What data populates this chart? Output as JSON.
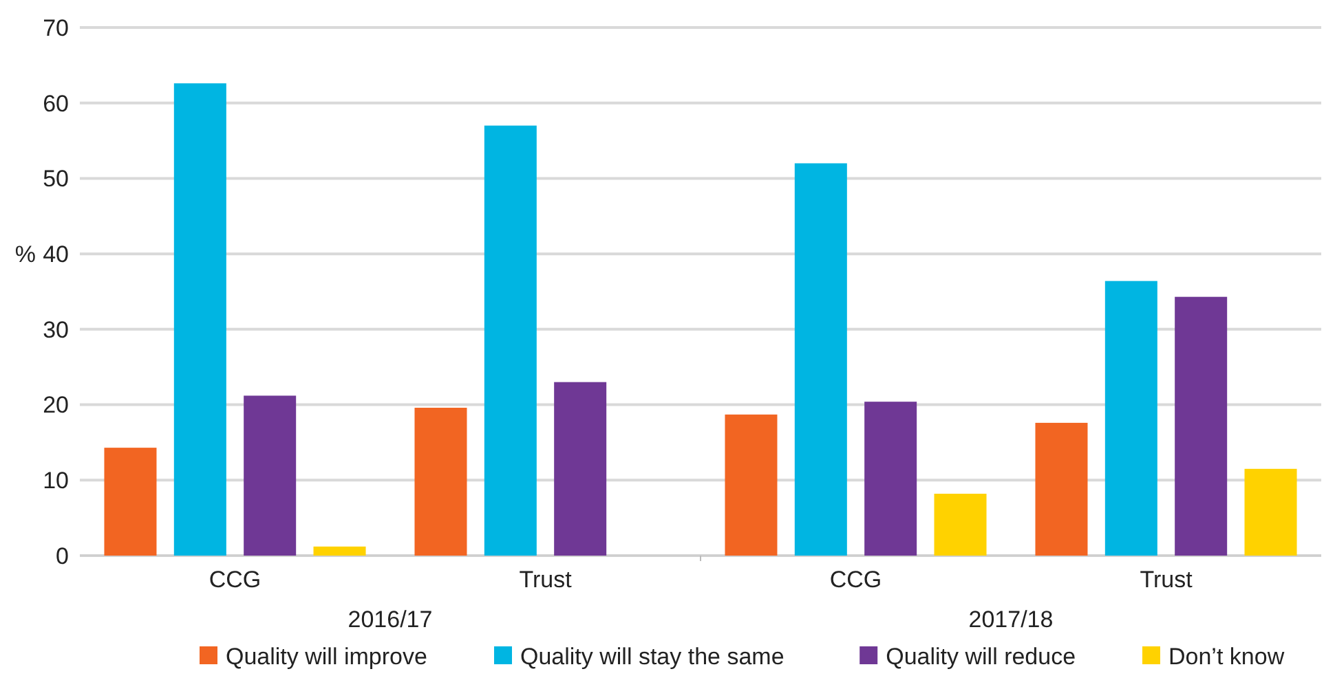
{
  "chart_data": {
    "type": "bar",
    "ylabel": "%",
    "categories": [
      "CCG",
      "Trust",
      "CCG",
      "Trust"
    ],
    "annotations": [
      "2016/17",
      "2017/18"
    ],
    "series": [
      {
        "name": "Quality will improve",
        "color": "#f26522",
        "values": [
          14.3,
          19.6,
          18.7,
          17.6
        ]
      },
      {
        "name": "Quality will stay the same",
        "color": "#00b5e2",
        "values": [
          62.6,
          57.0,
          52.0,
          36.4
        ]
      },
      {
        "name": "Quality will reduce",
        "color": "#6f3895",
        "values": [
          21.2,
          23.0,
          20.4,
          34.3
        ]
      },
      {
        "name": "Don’t know",
        "color": "#ffd200",
        "values": [
          1.2,
          null,
          8.2,
          11.5
        ]
      }
    ],
    "ylim": [
      0,
      70
    ],
    "yticks": [
      0,
      10,
      20,
      30,
      40,
      50,
      60,
      70
    ],
    "grid": "y",
    "legend": "bottom"
  }
}
